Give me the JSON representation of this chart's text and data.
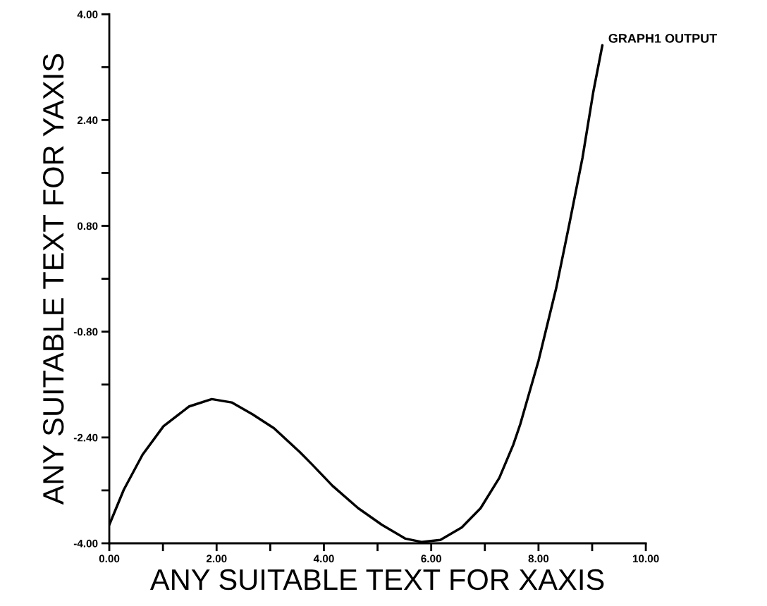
{
  "chart_data": {
    "type": "line",
    "xlabel": "ANY SUITABLE TEXT FOR XAXIS",
    "ylabel": "ANY SUITABLE TEXT FOR YAXIS",
    "x": [
      0.0,
      0.27,
      0.62,
      1.01,
      1.49,
      1.91,
      2.28,
      2.67,
      3.07,
      3.55,
      3.77,
      4.16,
      4.64,
      5.08,
      5.52,
      5.82,
      6.17,
      6.57,
      6.92,
      7.27,
      7.53,
      7.66,
      8.0,
      8.33,
      8.58,
      8.82,
      9.02,
      9.19
    ],
    "series": [
      {
        "color": "#000000",
        "values": [
          -3.72,
          -3.19,
          -2.66,
          -2.23,
          -1.93,
          -1.82,
          -1.87,
          -2.05,
          -2.26,
          -2.62,
          -2.8,
          -3.13,
          -3.47,
          -3.72,
          -3.93,
          -3.98,
          -3.95,
          -3.76,
          -3.47,
          -3.01,
          -2.51,
          -2.2,
          -1.24,
          -0.14,
          0.85,
          1.83,
          2.82,
          3.53
        ]
      }
    ],
    "xlim": [
      0,
      10
    ],
    "ylim": [
      -4,
      4
    ],
    "xticks": [
      {
        "value": 0,
        "label": "0.00"
      },
      {
        "value": 1,
        "label": null
      },
      {
        "value": 2,
        "label": "2.00"
      },
      {
        "value": 3,
        "label": null
      },
      {
        "value": 4,
        "label": "4.00"
      },
      {
        "value": 5,
        "label": null
      },
      {
        "value": 6,
        "label": "6.00"
      },
      {
        "value": 7,
        "label": null
      },
      {
        "value": 8,
        "label": "8.00"
      },
      {
        "value": 9,
        "label": null
      },
      {
        "value": 10,
        "label": "10.00"
      }
    ],
    "yticks": [
      {
        "value": -4,
        "label": "-4.00"
      },
      {
        "value": -3.2,
        "label": null
      },
      {
        "value": -2.4,
        "label": "-2.40"
      },
      {
        "value": -1.6,
        "label": null
      },
      {
        "value": -0.8,
        "label": "-0.80"
      },
      {
        "value": 0,
        "label": null
      },
      {
        "value": 0.8,
        "label": "0.80"
      },
      {
        "value": 1.6,
        "label": null
      },
      {
        "value": 2.4,
        "label": "2.40"
      },
      {
        "value": 3.2,
        "label": null
      },
      {
        "value": 4,
        "label": "4.00"
      }
    ],
    "annotations": [
      {
        "text": "GRAPH1 OUTPUT",
        "x": 9.19,
        "y": 3.53
      }
    ],
    "grid": false,
    "marker": "none",
    "line_style": "solid"
  }
}
